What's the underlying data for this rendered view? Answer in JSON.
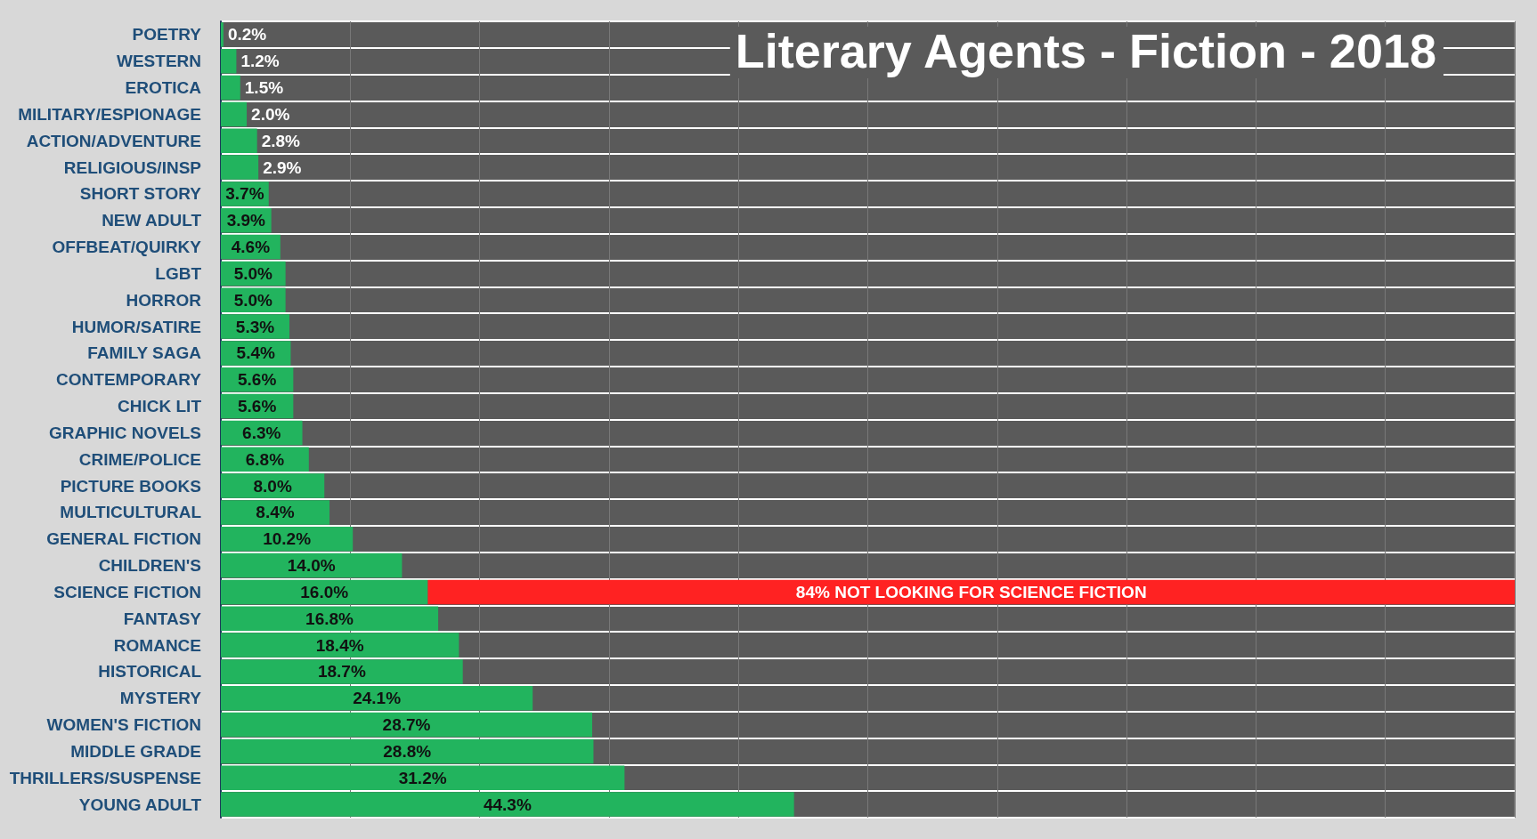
{
  "chart_data": {
    "type": "bar",
    "title": "Literary Agents - Fiction - 2018",
    "orientation": "horizontal",
    "stacked": true,
    "grid": true,
    "tick_labels": "y",
    "categories": [
      "POETRY",
      "WESTERN",
      "EROTICA",
      "MILITARY/ESPIONAGE",
      "ACTION/ADVENTURE",
      "RELIGIOUS/INSP",
      "SHORT STORY",
      "NEW ADULT",
      "OFFBEAT/QUIRKY",
      "LGBT",
      "HORROR",
      "HUMOR/SATIRE",
      "FAMILY SAGA",
      "CONTEMPORARY",
      "CHICK LIT",
      "GRAPHIC NOVELS",
      "CRIME/POLICE",
      "PICTURE BOOKS",
      "MULTICULTURAL",
      "GENERAL FICTION",
      "CHILDREN'S",
      "SCIENCE FICTION",
      "FANTASY",
      "ROMANCE",
      "HISTORICAL",
      "MYSTERY",
      "WOMEN'S FICTION",
      "MIDDLE GRADE",
      "THRILLERS/SUSPENSE",
      "YOUNG ADULT"
    ],
    "series": [
      {
        "color": "#22b45e",
        "values": [
          0.2,
          1.2,
          1.5,
          2.0,
          2.8,
          2.9,
          3.7,
          3.9,
          4.6,
          5.0,
          5.0,
          5.3,
          5.4,
          5.6,
          5.6,
          6.3,
          6.8,
          8.0,
          8.4,
          10.2,
          14.0,
          16.0,
          16.8,
          18.4,
          18.7,
          24.1,
          28.7,
          28.8,
          31.2,
          44.3
        ],
        "value_labels": [
          "0.2%",
          "1.2%",
          "1.5%",
          "2.0%",
          "2.8%",
          "2.9%",
          "3.7%",
          "3.9%",
          "4.6%",
          "5.0%",
          "5.0%",
          "5.3%",
          "5.4%",
          "5.6%",
          "5.6%",
          "6.3%",
          "6.8%",
          "8.0%",
          "8.4%",
          "10.2%",
          "14.0%",
          "16.0%",
          "16.8%",
          "18.4%",
          "18.7%",
          "24.1%",
          "28.7%",
          "28.8%",
          "31.2%",
          "44.3%"
        ]
      },
      {
        "color": "#ff2222",
        "values": [
          null,
          null,
          null,
          null,
          null,
          null,
          null,
          null,
          null,
          null,
          null,
          null,
          null,
          null,
          null,
          null,
          null,
          null,
          null,
          null,
          null,
          84,
          null,
          null,
          null,
          null,
          null,
          null,
          null,
          null
        ],
        "value_labels": [
          null,
          null,
          null,
          null,
          null,
          null,
          null,
          null,
          null,
          null,
          null,
          null,
          null,
          null,
          null,
          null,
          null,
          null,
          null,
          null,
          null,
          "84% NOT LOOKING FOR SCIENCE FICTION",
          null,
          null,
          null,
          null,
          null,
          null,
          null,
          null
        ]
      }
    ]
  }
}
